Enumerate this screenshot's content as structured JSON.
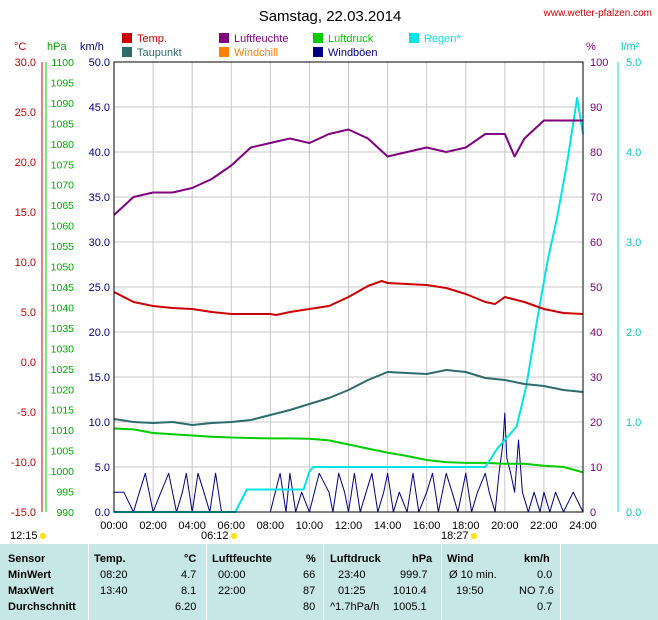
{
  "header": {
    "title": "Samstag, 22.03.2014",
    "site": "www.wetter-pfalzen.com"
  },
  "colors": {
    "temp": "#cc0000",
    "humidity": "#800080",
    "pressure": "#00cc00",
    "rain": "#00e5e5",
    "dewpoint": "#2e6b6b",
    "windchill": "#ff8000",
    "gust": "#000080",
    "plot_border": "#000000",
    "grid": "#c8c8c8",
    "table_bg": "#c7e6e6"
  },
  "legend": [
    {
      "label": "Temp.",
      "color": "#cc0000"
    },
    {
      "label": "Luftfeuchte",
      "color": "#800080"
    },
    {
      "label": "Luftdruck",
      "color": "#00cc00"
    },
    {
      "label": "Regen*",
      "color": "#00e5e5"
    },
    {
      "label": "Taupunkt",
      "color": "#2e6b6b"
    },
    {
      "label": "Windchill",
      "color": "#ff8000"
    },
    {
      "label": "Windböen",
      "color": "#000080"
    }
  ],
  "axes": {
    "temp": {
      "unit": "°C",
      "ticks": [
        "30.0",
        "25.0",
        "20.0",
        "15.0",
        "10.0",
        "5.0",
        "0.0",
        "-5.0",
        "-10.0",
        "-15.0"
      ],
      "range": [
        -15,
        30
      ]
    },
    "pressure": {
      "unit": "hPa",
      "ticks": [
        "1100",
        "1095",
        "1090",
        "1085",
        "1080",
        "1075",
        "1070",
        "1065",
        "1060",
        "1055",
        "1050",
        "1045",
        "1040",
        "1035",
        "1030",
        "1025",
        "1020",
        "1015",
        "1010",
        "1005",
        "1000",
        "995",
        "990"
      ],
      "range": [
        990,
        1100
      ]
    },
    "wind": {
      "unit": "km/h",
      "ticks": [
        "50.0",
        "45.0",
        "40.0",
        "35.0",
        "30.0",
        "25.0",
        "20.0",
        "15.0",
        "10.0",
        "5.0",
        "0.0"
      ],
      "range": [
        0,
        50
      ]
    },
    "humidity": {
      "unit": "%",
      "ticks": [
        "100",
        "90",
        "80",
        "70",
        "60",
        "50",
        "40",
        "30",
        "20",
        "10",
        "0"
      ],
      "range": [
        0,
        100
      ]
    },
    "rain": {
      "unit": "l/m²",
      "ticks": [
        "5.0",
        "4.0",
        "3.0",
        "2.0",
        "1.0",
        "0.0"
      ],
      "range": [
        0,
        5
      ]
    },
    "x": {
      "ticks": [
        "00:00",
        "02:00",
        "04:00",
        "06:00",
        "08:00",
        "10:00",
        "12:00",
        "14:00",
        "16:00",
        "18:00",
        "20:00",
        "22:00",
        "24:00"
      ],
      "range": [
        0,
        24
      ]
    }
  },
  "sun": {
    "daylight": "12:15",
    "sunrise": "06:12",
    "sunset": "18:27"
  },
  "chart_data": {
    "type": "line",
    "title": "Samstag, 22.03.2014",
    "x_unit": "hours",
    "grid": true,
    "legend_position": "top",
    "series": [
      {
        "name": "Temp.",
        "axis": "°C",
        "x": [
          0,
          1,
          2,
          3,
          4,
          5,
          5.5,
          6,
          7,
          8,
          8.3,
          9,
          10,
          11,
          12,
          13,
          13.7,
          14,
          15,
          16,
          17,
          18,
          19,
          19.5,
          20,
          21,
          22,
          23,
          24
        ],
        "values": [
          7.0,
          6.0,
          5.6,
          5.4,
          5.3,
          5.0,
          4.9,
          4.8,
          4.8,
          4.8,
          4.7,
          5.0,
          5.3,
          5.6,
          6.5,
          7.6,
          8.1,
          7.9,
          7.8,
          7.7,
          7.4,
          6.8,
          6.0,
          5.8,
          6.5,
          6.0,
          5.3,
          4.9,
          4.8
        ]
      },
      {
        "name": "Taupunkt",
        "axis": "°C",
        "x": [
          0,
          1,
          2,
          3,
          4,
          5,
          6,
          7,
          8,
          9,
          10,
          11,
          12,
          13,
          14,
          15,
          16,
          17,
          18,
          19,
          20,
          21,
          22,
          23,
          24
        ],
        "values": [
          -5.7,
          -6.0,
          -6.1,
          -6.0,
          -6.3,
          -6.1,
          -6.0,
          -5.8,
          -5.3,
          -4.8,
          -4.2,
          -3.6,
          -2.8,
          -1.8,
          -1.0,
          -1.1,
          -1.2,
          -0.8,
          -1.0,
          -1.6,
          -1.8,
          -2.2,
          -2.4,
          -2.8,
          -3.0
        ]
      },
      {
        "name": "Luftfeuchte",
        "axis": "%",
        "x": [
          0,
          1,
          2,
          3,
          4,
          5,
          6,
          7,
          8,
          9,
          10,
          11,
          12,
          13,
          14,
          15,
          16,
          17,
          18,
          19,
          20,
          20.5,
          21,
          22,
          23,
          24
        ],
        "values": [
          66,
          70,
          71,
          71,
          72,
          74,
          77,
          81,
          82,
          83,
          82,
          84,
          85,
          83,
          79,
          80,
          81,
          80,
          81,
          84,
          84,
          79,
          83,
          87,
          87,
          87
        ]
      },
      {
        "name": "Luftdruck",
        "axis": "hPa",
        "x": [
          0,
          1,
          2,
          3,
          4,
          5,
          6,
          7,
          8,
          9,
          10,
          11,
          12,
          13,
          14,
          15,
          16,
          17,
          18,
          19,
          20,
          21,
          22,
          23,
          24
        ],
        "values": [
          1010.4,
          1010.2,
          1009.3,
          1009.0,
          1008.7,
          1008.4,
          1008.2,
          1008.1,
          1008.0,
          1008.0,
          1007.9,
          1007.5,
          1006.5,
          1005.5,
          1004.5,
          1003.7,
          1002.7,
          1002.2,
          1002.0,
          1002.0,
          1001.8,
          1001.8,
          1001.3,
          1001.0,
          999.7
        ]
      },
      {
        "name": "Regen*",
        "axis": "l/m²",
        "x": [
          0,
          6.2,
          6.8,
          9.7,
          10.0,
          10.2,
          12,
          14,
          16,
          18,
          19,
          19.6,
          20,
          20.6,
          21.1,
          21.7,
          22.2,
          22.7,
          23.2,
          23.7,
          24
        ],
        "values": [
          0,
          0,
          0.25,
          0.25,
          0.45,
          0.5,
          0.5,
          0.5,
          0.5,
          0.5,
          0.5,
          0.7,
          0.8,
          0.95,
          1.4,
          2.2,
          2.8,
          3.3,
          3.9,
          4.6,
          4.2
        ]
      },
      {
        "name": "Windböen",
        "axis": "km/h",
        "x": [
          0,
          0.5,
          1,
          1.3,
          1.6,
          2,
          2.4,
          2.8,
          3.2,
          3.5,
          3.7,
          4,
          4.3,
          4.6,
          4.9,
          5.2,
          5.5,
          6,
          6.5,
          7,
          7.5,
          8,
          8.5,
          8.8,
          9,
          9.3,
          9.6,
          10,
          10.5,
          11,
          11.2,
          11.5,
          11.8,
          12,
          12.3,
          12.6,
          12.9,
          13.2,
          13.5,
          13.8,
          14,
          14.3,
          14.6,
          15,
          15.3,
          15.6,
          16,
          16.3,
          16.6,
          17,
          17.3,
          17.6,
          18,
          18.3,
          18.6,
          19,
          19.2,
          19.5,
          19.7,
          19.9,
          20,
          20.1,
          20.3,
          20.5,
          20.7,
          20.9,
          21.2,
          21.5,
          21.8,
          22,
          22.3,
          22.6,
          23,
          23.5,
          24
        ],
        "values": [
          2.2,
          2.2,
          0,
          2.2,
          4.3,
          0,
          2.2,
          4.3,
          0,
          2.2,
          4.3,
          0,
          4.3,
          2.2,
          0,
          4.3,
          0,
          0,
          0,
          0,
          0,
          0,
          4.3,
          0,
          4.3,
          0,
          2.2,
          0,
          4.3,
          2.2,
          0,
          4.3,
          2.2,
          0,
          4.3,
          0,
          2.2,
          4.3,
          0,
          2.2,
          4.3,
          0,
          2.2,
          0,
          4.3,
          0,
          2.2,
          4.3,
          0,
          4.3,
          2.2,
          0,
          4.3,
          0,
          2.2,
          4.3,
          2.2,
          0,
          4.3,
          7.6,
          11,
          6,
          4.3,
          2.2,
          8,
          2.2,
          0,
          2.2,
          0,
          2.2,
          0,
          2.2,
          0,
          2.2,
          0
        ]
      }
    ]
  },
  "table": {
    "headers": {
      "sensor": "Sensor",
      "temp": "Temp.",
      "temp_unit": "°C",
      "hum": "Luftfeuchte",
      "hum_unit": "%",
      "press": "Luftdruck",
      "press_unit": "hPa",
      "wind": "Wind",
      "wind_unit": "km/h"
    },
    "rows": [
      {
        "label": "MinWert",
        "temp_time": "08:20",
        "temp_val": "4.7",
        "hum_time": "00:00",
        "hum_val": "66",
        "press_time": "23:40",
        "press_val": "999.7",
        "wind_time": "Ø 10 min.",
        "wind_val": "0.0"
      },
      {
        "label": "MaxWert",
        "temp_time": "13:40",
        "temp_val": "8.1",
        "hum_time": "22:00",
        "hum_val": "87",
        "press_time": "01:25",
        "press_val": "1010.4",
        "wind_time": "19:50",
        "wind_val": "NO 7.6"
      },
      {
        "label": "Durchschnitt",
        "temp_time": "",
        "temp_val": "6.20",
        "hum_time": "",
        "hum_val": "80",
        "press_time": "^1.7hPa/h",
        "press_val": "1005.1",
        "wind_time": "",
        "wind_val": "0.7"
      }
    ]
  }
}
